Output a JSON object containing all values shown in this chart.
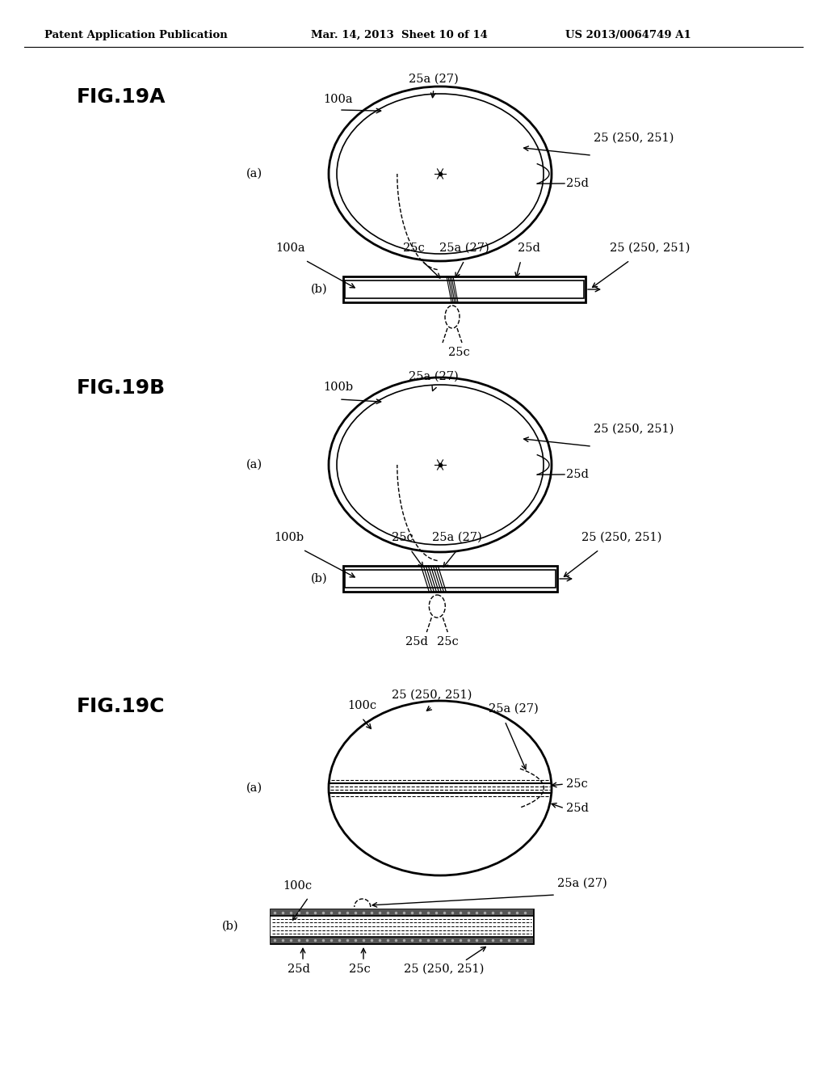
{
  "bg_color": "#ffffff",
  "header_left": "Patent Application Publication",
  "header_mid": "Mar. 14, 2013  Sheet 10 of 14",
  "header_right": "US 2013/0064749 A1",
  "fig19a_label": "FIG.19A",
  "fig19b_label": "FIG.19B",
  "fig19c_label": "FIG.19C"
}
